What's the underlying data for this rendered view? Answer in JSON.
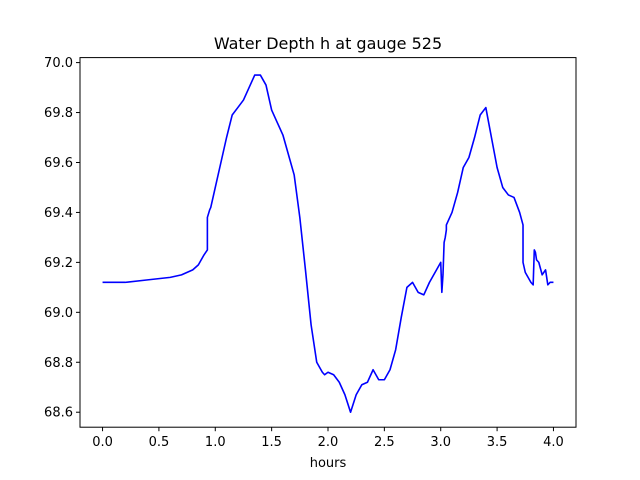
{
  "chart_data": {
    "type": "line",
    "title": "Water Depth h at gauge 525",
    "xlabel": "hours",
    "ylabel": "",
    "xlim": [
      -0.2,
      4.2
    ],
    "ylim": [
      68.54,
      70.02
    ],
    "xticks": [
      0.0,
      0.5,
      1.0,
      1.5,
      2.0,
      2.5,
      3.0,
      3.5,
      4.0
    ],
    "xtick_labels": [
      "0.0",
      "0.5",
      "1.0",
      "1.5",
      "2.0",
      "2.5",
      "3.0",
      "3.5",
      "4.0"
    ],
    "yticks": [
      68.6,
      68.8,
      69.0,
      69.2,
      69.4,
      69.6,
      69.8,
      70.0
    ],
    "ytick_labels": [
      "68.6",
      "68.8",
      "69.0",
      "69.2",
      "69.4",
      "69.6",
      "69.8",
      "70.0"
    ],
    "grid": false,
    "legend": "none",
    "series": [
      {
        "color": "#0000ff",
        "x": [
          0.0,
          0.2,
          0.4,
          0.6,
          0.7,
          0.8,
          0.85,
          0.9,
          0.93,
          0.93,
          0.95,
          0.96,
          0.97,
          0.98,
          1.0,
          1.05,
          1.1,
          1.15,
          1.2,
          1.25,
          1.3,
          1.35,
          1.4,
          1.45,
          1.5,
          1.55,
          1.6,
          1.65,
          1.7,
          1.75,
          1.8,
          1.85,
          1.9,
          1.95,
          1.97,
          2.0,
          2.05,
          2.1,
          2.15,
          2.2,
          2.25,
          2.3,
          2.35,
          2.4,
          2.45,
          2.5,
          2.55,
          2.6,
          2.65,
          2.7,
          2.75,
          2.8,
          2.85,
          2.9,
          2.95,
          3.0,
          3.01,
          3.02,
          3.03,
          3.04,
          3.05,
          3.05,
          3.1,
          3.15,
          3.2,
          3.25,
          3.3,
          3.35,
          3.4,
          3.45,
          3.5,
          3.55,
          3.6,
          3.65,
          3.7,
          3.73,
          3.73,
          3.75,
          3.8,
          3.82,
          3.83,
          3.84,
          3.85,
          3.87,
          3.9,
          3.93,
          3.95,
          3.97,
          4.0
        ],
        "y": [
          69.12,
          69.12,
          69.13,
          69.14,
          69.15,
          69.17,
          69.19,
          69.23,
          69.25,
          69.38,
          69.41,
          69.42,
          69.44,
          69.46,
          69.5,
          69.6,
          69.7,
          69.79,
          69.82,
          69.85,
          69.9,
          69.95,
          69.95,
          69.91,
          69.81,
          69.76,
          69.71,
          69.63,
          69.55,
          69.38,
          69.17,
          68.95,
          68.8,
          68.76,
          68.75,
          68.76,
          68.75,
          68.72,
          68.67,
          68.6,
          68.67,
          68.71,
          68.72,
          68.77,
          68.73,
          68.73,
          68.77,
          68.85,
          68.98,
          69.1,
          69.12,
          69.08,
          69.07,
          69.12,
          69.16,
          69.2,
          69.08,
          69.15,
          69.28,
          69.3,
          69.33,
          69.35,
          69.4,
          69.48,
          69.58,
          69.62,
          69.7,
          69.79,
          69.82,
          69.7,
          69.58,
          69.5,
          69.47,
          69.46,
          69.4,
          69.35,
          69.2,
          69.16,
          69.12,
          69.11,
          69.25,
          69.24,
          69.21,
          69.2,
          69.15,
          69.17,
          69.11,
          69.12,
          69.12
        ]
      }
    ]
  }
}
